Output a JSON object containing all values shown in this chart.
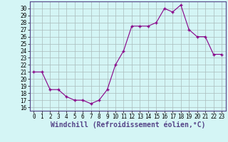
{
  "x": [
    0,
    1,
    2,
    3,
    4,
    5,
    6,
    7,
    8,
    9,
    10,
    11,
    12,
    13,
    14,
    15,
    16,
    17,
    18,
    19,
    20,
    21,
    22,
    23
  ],
  "y": [
    21,
    21,
    18.5,
    18.5,
    17.5,
    17,
    17,
    16.5,
    17,
    18.5,
    22,
    24,
    27.5,
    27.5,
    27.5,
    28,
    30,
    29.5,
    30.5,
    27,
    26,
    26,
    23.5,
    23.5
  ],
  "line_color": "#880088",
  "marker_color": "#880088",
  "bg_color": "#d4f5f5",
  "grid_color": "#aabbbb",
  "border_color": "#554488",
  "xlabel": "Windchill (Refroidissement éolien,°C)",
  "ylim_min": 15.5,
  "ylim_max": 31.0,
  "xlim_min": -0.5,
  "xlim_max": 23.5,
  "yticks": [
    16,
    17,
    18,
    19,
    20,
    21,
    22,
    23,
    24,
    25,
    26,
    27,
    28,
    29,
    30
  ],
  "xticks": [
    0,
    1,
    2,
    3,
    4,
    5,
    6,
    7,
    8,
    9,
    10,
    11,
    12,
    13,
    14,
    15,
    16,
    17,
    18,
    19,
    20,
    21,
    22,
    23
  ],
  "tick_fontsize": 5.5,
  "xlabel_fontsize": 7.0
}
